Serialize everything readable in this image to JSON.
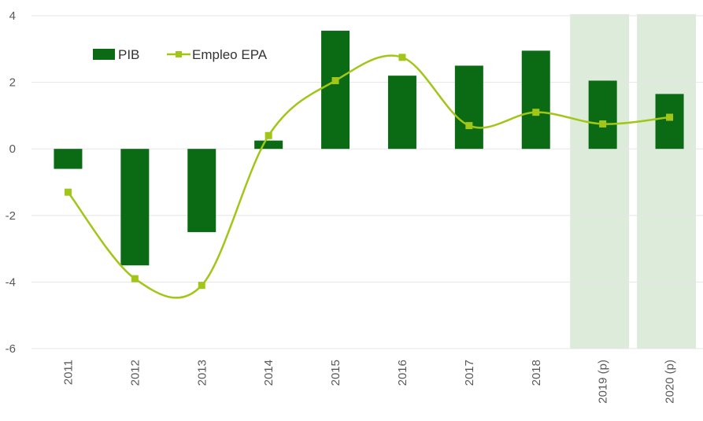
{
  "chart_data": {
    "type": "bar",
    "categories": [
      "2011",
      "2012",
      "2013",
      "2014",
      "2015",
      "2016",
      "2017",
      "2018",
      "2019 (p)",
      "2020 (p)"
    ],
    "series": [
      {
        "name": "PIB",
        "kind": "bar",
        "color": "#0b6b14",
        "values": [
          -0.6,
          -3.5,
          -2.5,
          0.25,
          3.55,
          2.2,
          2.5,
          2.95,
          2.05,
          1.65
        ]
      },
      {
        "name": "Empleo EPA",
        "kind": "line",
        "color": "#a2c617",
        "values": [
          -1.3,
          -3.9,
          -4.1,
          0.4,
          2.05,
          2.75,
          0.7,
          1.1,
          0.75,
          0.95
        ]
      }
    ],
    "yticks": [
      "-6",
      "-4",
      "-2",
      "0",
      "2",
      "4"
    ],
    "ylim": [
      -6,
      4
    ],
    "highlighted_categories": [
      "2019 (p)",
      "2020 (p)"
    ],
    "highlight_color": "#dcebda",
    "grid": true,
    "legend_position": "top-left"
  }
}
